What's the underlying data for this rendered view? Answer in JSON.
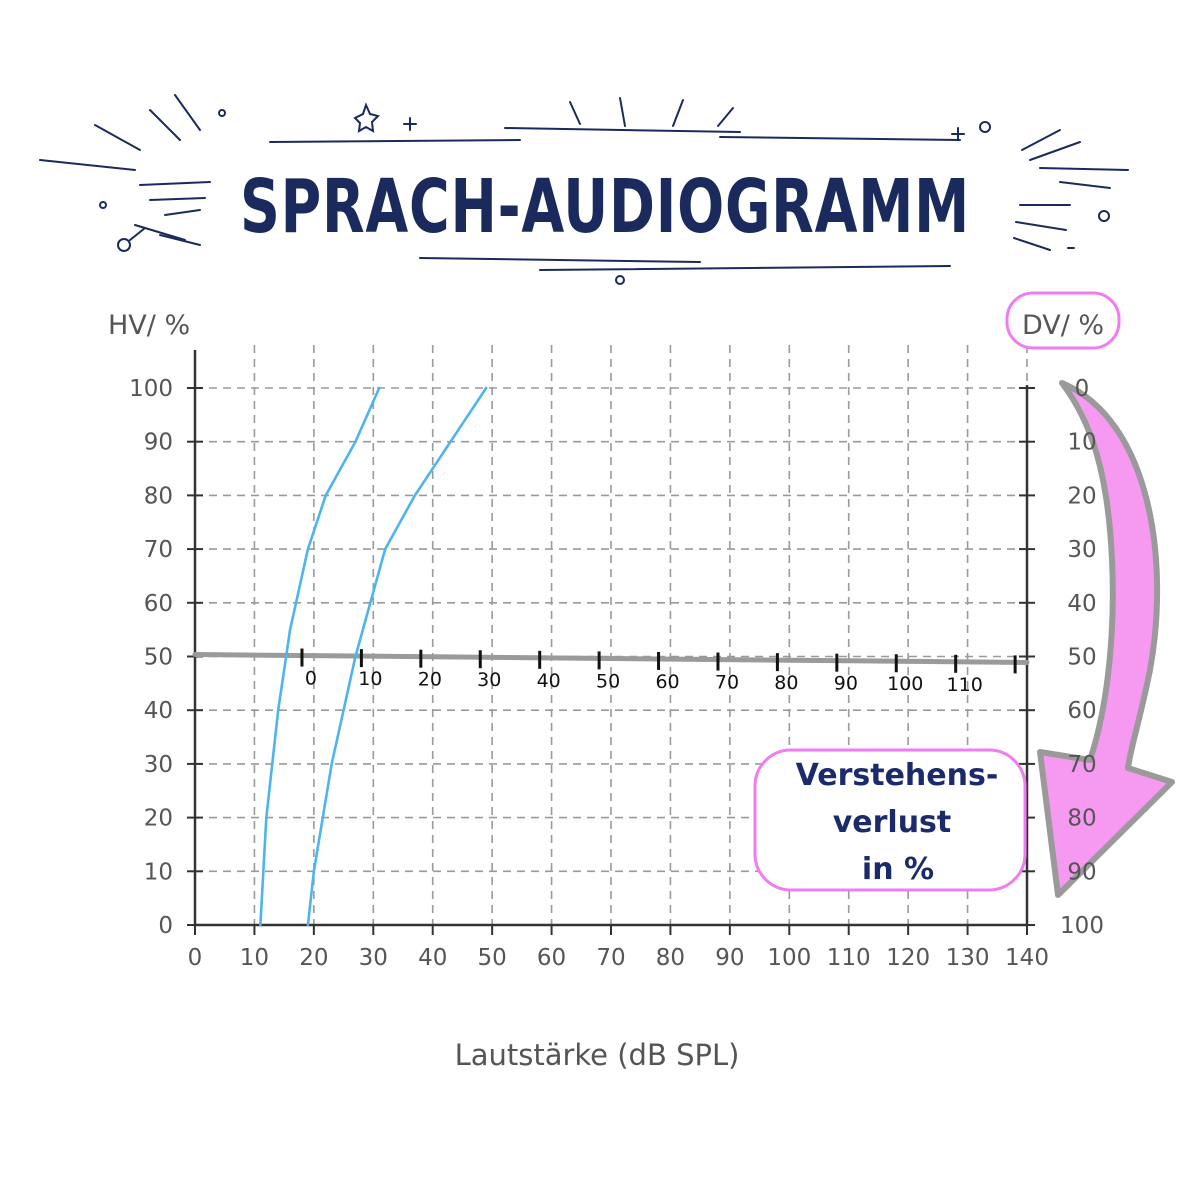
{
  "title": "SPRACH-AUDIOGRAMM",
  "colors": {
    "title": "#1b2a5c",
    "curve": "#4db4ee",
    "grid": "#9a9a9a",
    "axis": "#333333",
    "midline": "#9a9a9a",
    "accent": "#f07cf0",
    "arrow_fill": "#f59af0",
    "arrow_stroke": "#9a9a9a",
    "callout_text": "#1b2a6b"
  },
  "chart_data": {
    "type": "line",
    "title": "SPRACH-AUDIOGRAMM",
    "xlabel": "Lautstärke (dB SPL)",
    "ylabel_left": "HV/ %",
    "ylabel_right": "DV/ %",
    "xlim": [
      0,
      140
    ],
    "ylim": [
      0,
      100
    ],
    "x_ticks": [
      "0",
      "10",
      "20",
      "30",
      "40",
      "50",
      "60",
      "70",
      "80",
      "90",
      "100",
      "110",
      "120",
      "130",
      "140"
    ],
    "y_ticks_left": [
      "0",
      "10",
      "20",
      "30",
      "40",
      "50",
      "60",
      "70",
      "80",
      "90",
      "100"
    ],
    "y_ticks_right": [
      "100",
      "90",
      "80",
      "70",
      "60",
      "50",
      "40",
      "30",
      "20",
      "10",
      "0"
    ],
    "mid_scale": {
      "y": 50,
      "ticks": [
        {
          "x": 18,
          "label": "0"
        },
        {
          "x": 28,
          "label": "10"
        },
        {
          "x": 38,
          "label": "20"
        },
        {
          "x": 48,
          "label": "30"
        },
        {
          "x": 58,
          "label": "40"
        },
        {
          "x": 68,
          "label": "50"
        },
        {
          "x": 78,
          "label": "60"
        },
        {
          "x": 88,
          "label": "70"
        },
        {
          "x": 98,
          "label": "80"
        },
        {
          "x": 108,
          "label": "90"
        },
        {
          "x": 118,
          "label": "100"
        },
        {
          "x": 128,
          "label": "110"
        },
        {
          "x": 138,
          "label": ""
        }
      ]
    },
    "grid": true,
    "series": [
      {
        "x": [
          11,
          12,
          14,
          16,
          19,
          22,
          27,
          31
        ],
        "y": [
          0,
          20,
          40,
          55,
          70,
          80,
          90,
          100
        ]
      },
      {
        "x": [
          19,
          20,
          23,
          27,
          32,
          37,
          43,
          49
        ],
        "y": [
          0,
          10,
          30,
          50,
          70,
          80,
          90,
          100
        ]
      }
    ]
  },
  "callout": {
    "lines": [
      "Verstehens-",
      "verlust",
      "in %"
    ]
  }
}
